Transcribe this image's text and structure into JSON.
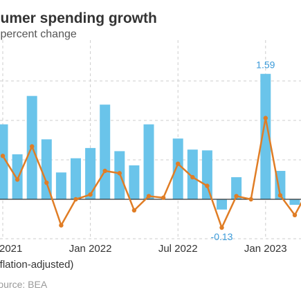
{
  "header": {
    "title": "Consumer spending growth",
    "subtitle": "Monthly percent change"
  },
  "legend": {
    "line_label": "Real (inflation-adjusted)"
  },
  "source": {
    "text": "Source: BEA"
  },
  "colors": {
    "bar": "#6ac4ea",
    "line": "#e07d25",
    "grid": "#cccccc",
    "axis_label": "#333333",
    "data_label": "#3a9ad9"
  },
  "chart_data": {
    "type": "bar",
    "title": "Consumer spending growth",
    "subtitle": "Monthly percent change",
    "x": [
      "2021-07",
      "2021-08",
      "2021-09",
      "2021-10",
      "2021-11",
      "2021-12",
      "2022-01",
      "2022-02",
      "2022-03",
      "2022-04",
      "2022-05",
      "2022-06",
      "2022-07",
      "2022-08",
      "2022-09",
      "2022-10",
      "2022-11",
      "2022-12",
      "2023-01",
      "2023-02",
      "2023-03",
      "2023-04",
      "2023-05"
    ],
    "series": [
      {
        "name": "Nominal",
        "type": "bar",
        "values": [
          0.95,
          0.57,
          1.31,
          0.76,
          0.34,
          0.52,
          0.65,
          1.2,
          0.61,
          0.43,
          0.95,
          0.0,
          0.77,
          0.63,
          0.62,
          -0.13,
          0.28,
          0.0,
          1.59,
          0.36,
          -0.07,
          0.44,
          0.23
        ]
      },
      {
        "name": "Real (inflation-adjusted)",
        "type": "line",
        "values": [
          0.55,
          0.25,
          0.67,
          0.21,
          -0.33,
          0.0,
          0.06,
          0.36,
          0.33,
          -0.14,
          0.04,
          0.02,
          0.45,
          0.28,
          0.17,
          -0.36,
          0.04,
          0.0,
          1.03,
          0.05,
          -0.2,
          0.14,
          0.13
        ]
      }
    ],
    "x_tick_labels": [
      {
        "x": "2021-07",
        "label": "Jul 2021"
      },
      {
        "x": "2022-01",
        "label": "Jan 2022"
      },
      {
        "x": "2022-07",
        "label": "Jul 2022"
      },
      {
        "x": "2023-01",
        "label": "Jan 2023"
      }
    ],
    "data_labels": [
      {
        "x": "2023-01",
        "label": "1.59"
      },
      {
        "x": "2022-10",
        "label": "-0.13"
      }
    ],
    "ylim": [
      -0.5,
      1.75
    ],
    "yticks": [
      -0.5,
      0,
      0.5,
      1,
      1.5
    ],
    "grid": true,
    "legend_position": "bottom-left"
  }
}
